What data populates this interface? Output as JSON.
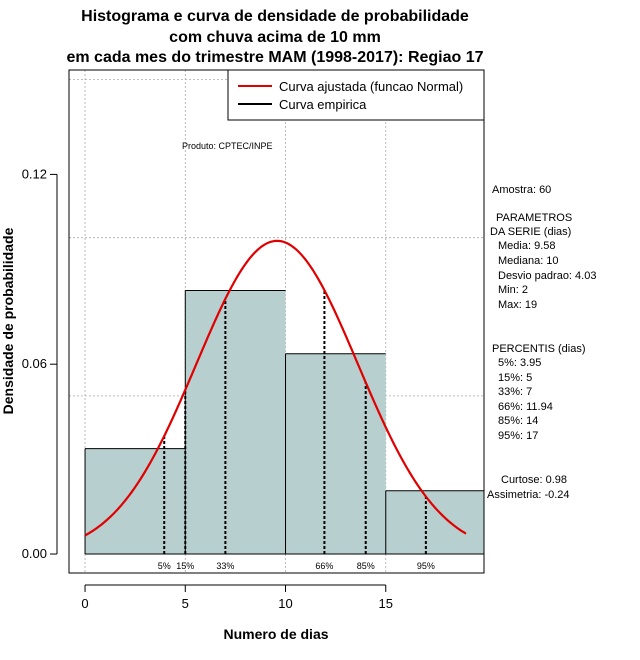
{
  "chart_data": {
    "type": "histogram",
    "title": [
      "Histograma e curva de densidade de probabilidade",
      "com chuva acima de 10 mm",
      "em cada mes do trimestre MAM (1998-2017): Regiao 17"
    ],
    "xlabel": "Numero de dias",
    "ylabel": "Densidade de probabilidade",
    "xlim": [
      -0.8,
      19.9
    ],
    "ylim": [
      -0.006,
      0.153
    ],
    "xticks": [
      0,
      5,
      10,
      15
    ],
    "yticks": [
      0.0,
      0.06,
      0.12
    ],
    "ytick_labels": [
      "0.00",
      "0.06",
      "0.12"
    ],
    "grid_x": [
      0,
      5,
      10,
      15,
      20
    ],
    "grid_y": [
      0.05,
      0.1,
      0.15
    ],
    "bins": [
      {
        "start": 0,
        "end": 5,
        "density": 0.0333
      },
      {
        "start": 5,
        "end": 10,
        "density": 0.0833
      },
      {
        "start": 10,
        "end": 15,
        "density": 0.0633
      },
      {
        "start": 15,
        "end": 20,
        "density": 0.02
      }
    ],
    "bar_fill": "#b8cfcf",
    "curve_color": "#e00000",
    "normal_fit": {
      "mean": 9.58,
      "sd": 4.03,
      "x_from": 0,
      "x_to": 19
    },
    "percentile_lines": [
      {
        "label": "5%",
        "x": 3.95
      },
      {
        "label": "15%",
        "x": 5
      },
      {
        "label": "33%",
        "x": 7
      },
      {
        "label": "66%",
        "x": 11.94
      },
      {
        "label": "85%",
        "x": 14
      },
      {
        "label": "95%",
        "x": 17
      }
    ],
    "legend": {
      "position": "top-right",
      "entries": [
        {
          "label": "Curva ajustada (funcao Normal)",
          "color": "#e00000"
        },
        {
          "label": "Curva empirica",
          "color": "#000000"
        }
      ]
    },
    "annotations": {
      "product": "Produto: CPTEC/INPE",
      "sample": "Amostra: 60",
      "params_header": [
        "PARAMETROS",
        "DA SERIE (dias)"
      ],
      "params": [
        "Media: 9.58",
        "Mediana: 10",
        "Desvio padrao: 4.03",
        "Min: 2",
        "Max: 19"
      ],
      "percentiles_header": "PERCENTIS (dias)",
      "percentiles": [
        "5%: 3.95",
        "15%: 5",
        "33%: 7",
        "66%: 11.94",
        "85%: 14",
        "95%: 17"
      ],
      "kurtosis": "Curtose: 0.98",
      "skewness": "Assimetria: -0.24"
    }
  }
}
